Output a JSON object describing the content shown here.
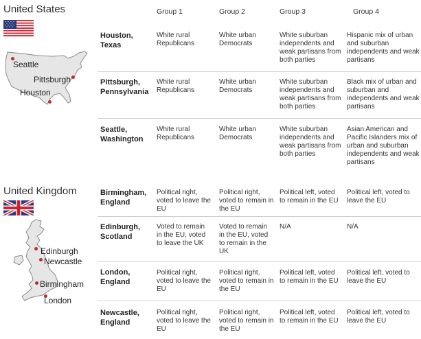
{
  "columns": [
    "Group 1",
    "Group 2",
    "Group 3",
    "Group 4"
  ],
  "us": {
    "country": "United States",
    "map_labels": {
      "seattle": "Seattle",
      "pittsburgh": "Pittsburgh",
      "houston": "Houston"
    },
    "rows": [
      {
        "city": [
          "Houston,",
          "Texas"
        ],
        "cells": [
          "White rural Republicans",
          "White urban Democrats",
          "White suburban independents and weak partisans from both parties",
          "Hispanic mix of urban and suburban independents and weak partisans"
        ]
      },
      {
        "city": [
          "Pittsburgh,",
          "Pennsylvania"
        ],
        "cells": [
          "White rural Republicans",
          "White urban Democrats",
          "White suburban independents and weak partisans from both parties",
          "Black mix of urban and suburban and independents and weak partisans"
        ]
      },
      {
        "city": [
          "Seattle,",
          "Washington"
        ],
        "cells": [
          "White rural Republicans",
          "White urban Democrats",
          "White suburban independents and weak partisans from both parties",
          "Asian American and Pacific Islanders mix of urban and suburban independents and weak partisans"
        ]
      }
    ]
  },
  "uk": {
    "country": "United Kingdom",
    "map_labels": {
      "edinburgh": "Edinburgh",
      "newcastle": "Newcastle",
      "birmingham": "Birmingham",
      "london": "London"
    },
    "rows": [
      {
        "city": [
          "Birmingham,",
          "England"
        ],
        "cells": [
          "Political right, voted to leave the EU",
          "Political right, voted to remain in the EU",
          "Political left, voted to remain in the EU",
          "Political left, voted to leave the EU"
        ]
      },
      {
        "city": [
          "Edinburgh,",
          "Scotland"
        ],
        "cells": [
          "Voted to remain in the EU, voted to leave the UK",
          "Voted to remain in the EU, voted to remain in the UK",
          "N/A",
          "N/A"
        ]
      },
      {
        "city": [
          "London,",
          "England"
        ],
        "cells": [
          "Political right, voted to leave the EU",
          "Political right, voted to remain in the EU",
          "Political left, voted to remain in the EU",
          "Political left, voted to leave the EU"
        ]
      },
      {
        "city": [
          "Newcastle,",
          "England"
        ],
        "cells": [
          "Political right, voted to leave the EU",
          "Political right, voted to remain in the EU",
          "Political left, voted to remain in the EU",
          "Political left, voted to leave the EU"
        ]
      }
    ]
  }
}
